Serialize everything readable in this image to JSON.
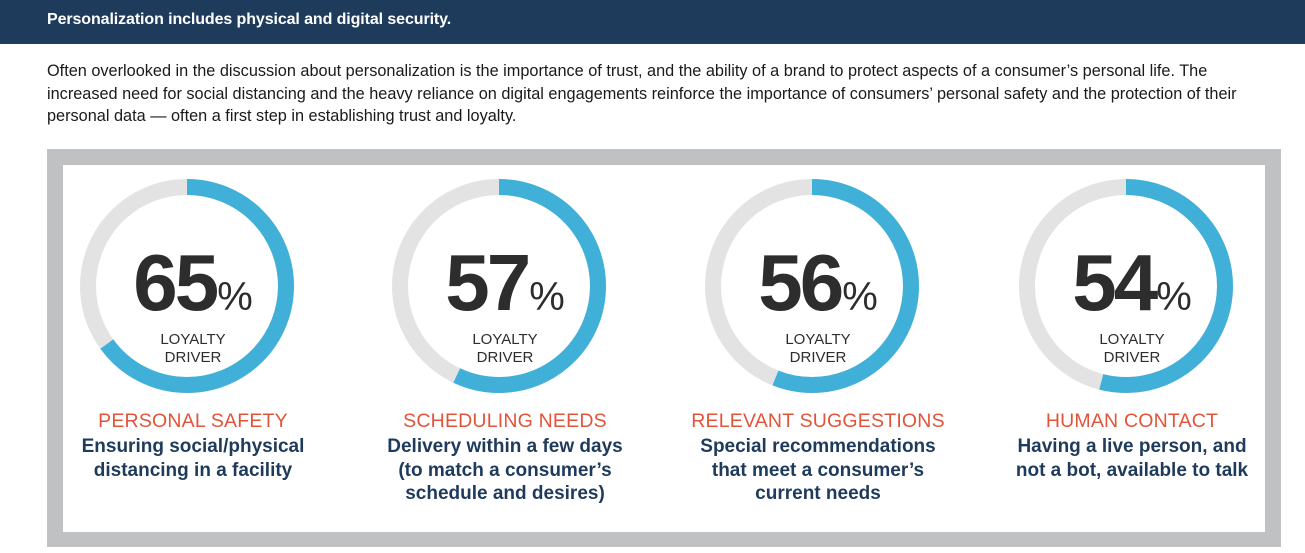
{
  "header": {
    "title": "Personalization includes physical and digital security."
  },
  "intro": {
    "text": "Often overlooked in the discussion about personalization is the importance of trust, and the ability of a brand to protect aspects of a consumer’s personal life. The increased need for social distancing and the heavy reliance on digital engagements reinforce the importance of consumers’ personal safety and the protection of their personal data — often a first step in establishing trust and loyalty."
  },
  "colors": {
    "header_bg": "#1f3b5c",
    "ring_fill": "#41b0d8",
    "ring_track": "#e3e3e3",
    "category": "#e2543a",
    "description": "#1f3b5c",
    "frame": "#c0c1c3"
  },
  "cards": [
    {
      "percent": 65,
      "percent_label": "65",
      "percent_sign": "%",
      "driver_line1": "LOYALTY",
      "driver_line2": "DRIVER",
      "category": "PERSONAL SAFETY",
      "description": "Ensuring social/physical\ndistancing in a facility"
    },
    {
      "percent": 57,
      "percent_label": "57",
      "percent_sign": "%",
      "driver_line1": "LOYALTY",
      "driver_line2": "DRIVER",
      "category": "SCHEDULING NEEDS",
      "description": "Delivery within a few days\n(to match a consumer’s\nschedule and desires)"
    },
    {
      "percent": 56,
      "percent_label": "56",
      "percent_sign": "%",
      "driver_line1": "LOYALTY",
      "driver_line2": "DRIVER",
      "category": "RELEVANT SUGGESTIONS",
      "description": "Special recommendations\nthat meet a consumer’s\ncurrent needs"
    },
    {
      "percent": 54,
      "percent_label": "54",
      "percent_sign": "%",
      "driver_line1": "LOYALTY",
      "driver_line2": "DRIVER",
      "category": "HUMAN CONTACT",
      "description": "Having a live person, and\nnot a bot, available to talk"
    }
  ]
}
